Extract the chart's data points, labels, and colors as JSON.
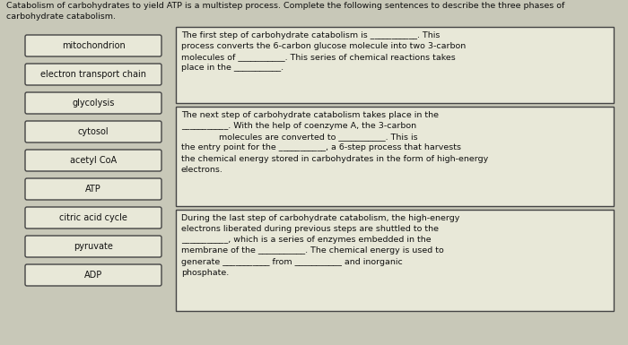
{
  "title_line1": "Catabolism of carbohydrates to yield ATP is a multistep process. Complete the following sentences to describe the three phases of",
  "title_line2": "carbohydrate catabolism.",
  "word_bank": [
    "mitochondrion",
    "electron transport chain",
    "glycolysis",
    "cytosol",
    "acetyl CoA",
    "ATP",
    "citric acid cycle",
    "pyruvate",
    "ADP"
  ],
  "box1_text": "The first step of carbohydrate catabolism is ___________. This\nprocess converts the 6-carbon glucose molecule into two 3-carbon\nmolecules of ___________. This series of chemical reactions takes\nplace in the ___________.",
  "box2_text": "The next step of carbohydrate catabolism takes place in the\n___________. With the help of coenzyme A, the 3-carbon\n              molecules are converted to ___________. This is\nthe entry point for the ___________, a 6-step process that harvests\nthe chemical energy stored in carbohydrates in the form of high-energy\nelectrons.",
  "box3_text": "During the last step of carbohydrate catabolism, the high-energy\nelectrons liberated during previous steps are shuttled to the\n___________, which is a series of enzymes embedded in the\nmembrane of the ___________. The chemical energy is used to\ngenerate ___________ from ___________ and inorganic\nphosphate.",
  "bg_color": "#c8c8b8",
  "box_bg": "#e8e8d8",
  "word_box_bg": "#e8e8d8",
  "text_color": "#111111",
  "border_color": "#444444"
}
